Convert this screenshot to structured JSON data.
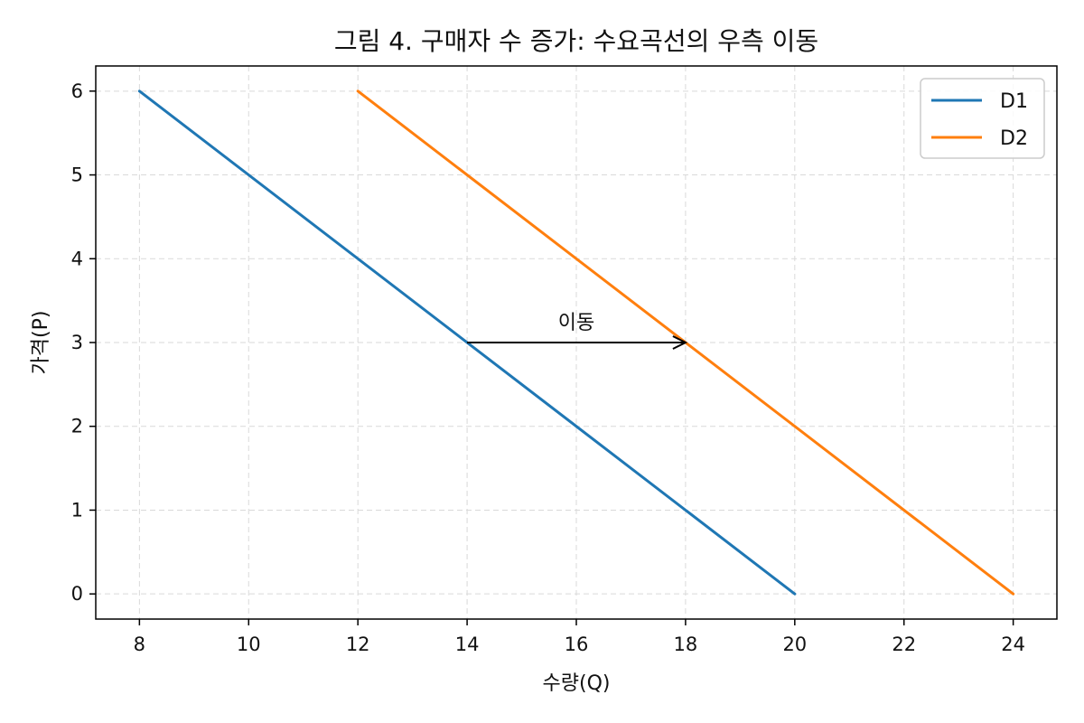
{
  "chart_data": {
    "type": "line",
    "title": "그림 4. 구매자 수 증가: 수요곡선의 우측 이동",
    "xlabel": "수량(Q)",
    "ylabel": "가격(P)",
    "xlim": [
      7.2,
      24.8
    ],
    "ylim": [
      -0.3,
      6.3
    ],
    "xticks": [
      8,
      10,
      12,
      14,
      16,
      18,
      20,
      22,
      24
    ],
    "yticks": [
      0,
      1,
      2,
      3,
      4,
      5,
      6
    ],
    "grid": true,
    "legend_position": "top-right",
    "series": [
      {
        "name": "D1",
        "color": "#1f77b4",
        "points": [
          [
            8,
            6
          ],
          [
            20,
            0
          ]
        ]
      },
      {
        "name": "D2",
        "color": "#ff7f0e",
        "points": [
          [
            12,
            6
          ],
          [
            24,
            0
          ]
        ]
      }
    ],
    "annotations": [
      {
        "text": "이동",
        "from": [
          14,
          3
        ],
        "to": [
          18,
          3
        ],
        "text_at": [
          16,
          3.25
        ],
        "type": "arrow"
      }
    ]
  }
}
